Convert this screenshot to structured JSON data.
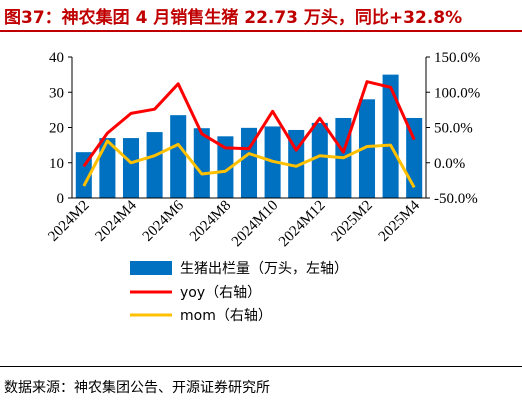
{
  "title": "图37：神农集团 4 月销售生猪 22.73 万头，同比+32.8%",
  "source": "数据来源：神农集团公告、开源证券研究所",
  "chart_data": {
    "type": "bar",
    "categories": [
      "2024M2",
      "2024M3",
      "2024M4",
      "2024M5",
      "2024M6",
      "2024M7",
      "2024M8",
      "2024M9",
      "2024M10",
      "2024M11",
      "2024M12",
      "2025M1",
      "2025M2",
      "2025M3",
      "2025M4"
    ],
    "x_tick_labels": [
      "2024M2",
      "2024M4",
      "2024M6",
      "2024M8",
      "2024M10",
      "2024M12",
      "2025M2",
      "2025M4"
    ],
    "series": [
      {
        "name": "生猪出栏量（万头，左轴）",
        "type": "bar",
        "axis": "left",
        "color": "#0070c0",
        "values": [
          13.0,
          17.0,
          17.0,
          18.7,
          23.5,
          19.8,
          17.5,
          19.9,
          20.3,
          19.3,
          21.3,
          22.7,
          28.0,
          35.0,
          22.7
        ]
      },
      {
        "name": "yoy（右轴）",
        "type": "line",
        "axis": "right",
        "color": "#ff0000",
        "values": [
          -5.0,
          42.0,
          70.0,
          76.0,
          112.0,
          41.0,
          21.0,
          20.0,
          73.0,
          18.0,
          63.0,
          15.0,
          115.0,
          107.0,
          32.8
        ]
      },
      {
        "name": "mom（右轴）",
        "type": "line",
        "axis": "right",
        "color": "#ffc000",
        "values": [
          -33.0,
          31.0,
          0.0,
          10.0,
          26.0,
          -16.0,
          -12.0,
          13.0,
          2.0,
          -5.0,
          10.0,
          7.0,
          23.0,
          25.0,
          -35.0
        ]
      }
    ],
    "y_left": {
      "min": 0,
      "max": 40,
      "ticks": [
        "0",
        "10",
        "20",
        "30",
        "40"
      ]
    },
    "y_right": {
      "min": -50,
      "max": 150,
      "ticks": [
        "-50.0%",
        "0.0%",
        "50.0%",
        "100.0%",
        "150.0%"
      ]
    },
    "legend_position": "bottom",
    "grid": false
  }
}
